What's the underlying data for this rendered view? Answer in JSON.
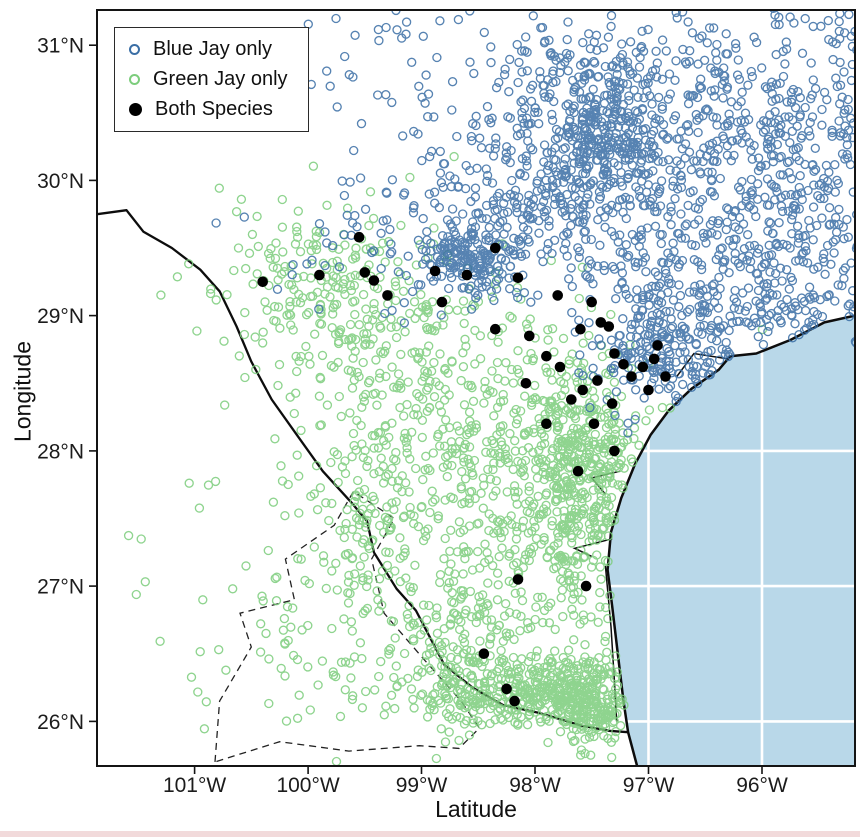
{
  "figure": {
    "description": "Map scatter plot of Blue Jay and Green Jay occurrence records over south Texas and the Gulf coast"
  },
  "legend": {
    "items": [
      {
        "label": "Blue Jay only",
        "marker": "open",
        "color": "#3a6ea5"
      },
      {
        "label": "Green Jay only",
        "marker": "open",
        "color": "#7ccd7c"
      },
      {
        "label": "Both Species",
        "marker": "filled",
        "color": "#000000"
      }
    ]
  },
  "axes": {
    "x": {
      "title": "Latitude",
      "ticks": [
        {
          "value": -101,
          "label": "101°W"
        },
        {
          "value": -100,
          "label": "100°W"
        },
        {
          "value": -99,
          "label": "99°W"
        },
        {
          "value": -98,
          "label": "98°W"
        },
        {
          "value": -97,
          "label": "97°W"
        },
        {
          "value": -96,
          "label": "96°W"
        }
      ]
    },
    "y": {
      "title": "Longitude",
      "ticks": [
        {
          "value": 31,
          "label": "31°N"
        },
        {
          "value": 30,
          "label": "30°N"
        },
        {
          "value": 29,
          "label": "29°N"
        },
        {
          "value": 28,
          "label": "28°N"
        },
        {
          "value": 27,
          "label": "27°N"
        },
        {
          "value": 26,
          "label": "26°N"
        }
      ]
    }
  },
  "chart_data": {
    "type": "scatter",
    "xlim": [
      -101.86,
      -95.18
    ],
    "ylim": [
      25.67,
      31.26
    ],
    "grid": "graticule over ocean only",
    "legend_position": "top-left inside plot",
    "series": [
      {
        "name": "Blue Jay only",
        "marker": "open-circle",
        "color": "#3a6ea5",
        "radius": 4,
        "clusters": [
          {
            "lon": -97.45,
            "lat": 30.45,
            "sx": 0.28,
            "sy": 0.27,
            "n": 260
          },
          {
            "lon": -97.6,
            "lat": 30.2,
            "sx": 0.65,
            "sy": 0.5,
            "n": 200
          },
          {
            "lon": -98.58,
            "lat": 29.42,
            "sx": 0.2,
            "sy": 0.13,
            "n": 150
          },
          {
            "lon": -98.35,
            "lat": 29.75,
            "sx": 0.5,
            "sy": 0.3,
            "n": 90
          },
          {
            "lon": -95.6,
            "lat": 30.0,
            "sx": 0.7,
            "sy": 0.75,
            "n": 450
          },
          {
            "lon": -95.5,
            "lat": 29.0,
            "sx": 0.45,
            "sy": 0.3,
            "n": 130
          },
          {
            "lon": -96.7,
            "lat": 28.85,
            "sx": 0.35,
            "sy": 0.3,
            "n": 170
          },
          {
            "lon": -97.0,
            "lat": 28.75,
            "sx": 0.3,
            "sy": 0.25,
            "n": 90
          },
          {
            "lon": -96.4,
            "lat": 30.6,
            "sx": 0.7,
            "sy": 0.45,
            "n": 160
          },
          {
            "lon": -98.6,
            "lat": 30.8,
            "sx": 0.9,
            "sy": 0.35,
            "n": 60
          },
          {
            "lon": -97.9,
            "lat": 29.9,
            "sx": 0.55,
            "sy": 0.4,
            "n": 130
          },
          {
            "lon": -99.3,
            "lat": 29.5,
            "sx": 0.55,
            "sy": 0.3,
            "n": 45
          },
          {
            "lon": -96.6,
            "lat": 29.6,
            "sx": 0.5,
            "sy": 0.5,
            "n": 200
          },
          {
            "uniform": true,
            "lon0": -99.8,
            "lon1": -95.2,
            "lat0": 29.4,
            "lat1": 31.26,
            "n": 110
          }
        ]
      },
      {
        "name": "Green Jay only",
        "marker": "open-circle",
        "color": "#7ccd7c",
        "radius": 4,
        "clusters": [
          {
            "lon": -98.15,
            "lat": 26.18,
            "sx": 0.55,
            "sy": 0.12,
            "n": 300
          },
          {
            "lon": -97.55,
            "lat": 26.12,
            "sx": 0.2,
            "sy": 0.18,
            "n": 170
          },
          {
            "lon": -97.75,
            "lat": 26.32,
            "sx": 0.28,
            "sy": 0.15,
            "n": 110
          },
          {
            "lon": -97.5,
            "lat": 27.55,
            "sx": 0.28,
            "sy": 0.45,
            "n": 200
          },
          {
            "lon": -97.8,
            "lat": 27.7,
            "sx": 0.42,
            "sy": 0.45,
            "n": 240
          },
          {
            "lon": -98.45,
            "lat": 27.8,
            "sx": 0.75,
            "sy": 0.65,
            "n": 260
          },
          {
            "lon": -99.45,
            "lat": 27.5,
            "sx": 0.22,
            "sy": 0.5,
            "n": 110
          },
          {
            "lon": -99.6,
            "lat": 29.0,
            "sx": 0.55,
            "sy": 0.4,
            "n": 180
          },
          {
            "lon": -100.1,
            "lat": 29.3,
            "sx": 0.35,
            "sy": 0.25,
            "n": 70
          },
          {
            "lon": -98.8,
            "lat": 28.5,
            "sx": 0.6,
            "sy": 0.4,
            "n": 160
          },
          {
            "lon": -100.2,
            "lat": 26.7,
            "sx": 0.7,
            "sy": 0.55,
            "n": 70
          },
          {
            "lon": -98.6,
            "lat": 26.6,
            "sx": 0.3,
            "sy": 0.3,
            "n": 120
          },
          {
            "lon": -97.55,
            "lat": 28.1,
            "sx": 0.25,
            "sy": 0.3,
            "n": 120
          },
          {
            "uniform": true,
            "lon0": -100.3,
            "lon1": -97.25,
            "lat0": 26.0,
            "lat1": 28.8,
            "n": 140
          }
        ]
      },
      {
        "name": "Both Species",
        "marker": "filled-circle",
        "color": "#000000",
        "radius": 5.3,
        "points": [
          [
            -100.4,
            29.25
          ],
          [
            -99.9,
            29.3
          ],
          [
            -99.55,
            29.58
          ],
          [
            -99.5,
            29.32
          ],
          [
            -99.42,
            29.26
          ],
          [
            -99.3,
            29.15
          ],
          [
            -98.88,
            29.33
          ],
          [
            -98.82,
            29.1
          ],
          [
            -98.6,
            29.3
          ],
          [
            -98.35,
            29.5
          ],
          [
            -98.15,
            29.28
          ],
          [
            -97.8,
            29.15
          ],
          [
            -97.5,
            29.1
          ],
          [
            -97.42,
            28.95
          ],
          [
            -98.35,
            28.9
          ],
          [
            -98.05,
            28.85
          ],
          [
            -97.9,
            28.7
          ],
          [
            -97.78,
            28.62
          ],
          [
            -97.6,
            28.9
          ],
          [
            -97.35,
            28.92
          ],
          [
            -97.3,
            28.72
          ],
          [
            -97.22,
            28.64
          ],
          [
            -97.15,
            28.55
          ],
          [
            -97.05,
            28.62
          ],
          [
            -96.95,
            28.68
          ],
          [
            -97.0,
            28.45
          ],
          [
            -97.45,
            28.52
          ],
          [
            -97.58,
            28.45
          ],
          [
            -97.68,
            28.38
          ],
          [
            -97.48,
            28.2
          ],
          [
            -97.9,
            28.2
          ],
          [
            -97.3,
            28.0
          ],
          [
            -97.62,
            27.85
          ],
          [
            -98.08,
            28.5
          ],
          [
            -96.92,
            28.78
          ],
          [
            -98.15,
            27.05
          ],
          [
            -97.55,
            27.0
          ],
          [
            -98.45,
            26.5
          ],
          [
            -98.25,
            26.24
          ],
          [
            -98.18,
            26.15
          ],
          [
            -97.32,
            28.35
          ],
          [
            -96.85,
            28.55
          ]
        ]
      }
    ]
  },
  "map": {
    "ocean_color": "#b9d8e9",
    "line_color": "#0d0d0d",
    "graticule": {
      "lons": [
        -97,
        -96
      ],
      "lats": [
        26,
        27,
        28
      ]
    },
    "coast": [
      [
        -95.18,
        29.0
      ],
      [
        -95.45,
        28.95
      ],
      [
        -95.75,
        28.82
      ],
      [
        -96.05,
        28.72
      ],
      [
        -96.28,
        28.7
      ],
      [
        -96.38,
        28.6
      ],
      [
        -96.62,
        28.46
      ],
      [
        -96.82,
        28.3
      ],
      [
        -96.98,
        28.12
      ],
      [
        -97.12,
        27.9
      ],
      [
        -97.24,
        27.65
      ],
      [
        -97.33,
        27.4
      ],
      [
        -97.36,
        27.12
      ],
      [
        -97.32,
        26.85
      ],
      [
        -97.27,
        26.5
      ],
      [
        -97.22,
        26.15
      ],
      [
        -97.18,
        25.92
      ],
      [
        -97.1,
        25.67
      ]
    ],
    "river": [
      [
        -101.86,
        29.75
      ],
      [
        -101.6,
        29.78
      ],
      [
        -101.45,
        29.62
      ],
      [
        -101.2,
        29.5
      ],
      [
        -100.95,
        29.34
      ],
      [
        -100.78,
        29.18
      ],
      [
        -100.63,
        28.92
      ],
      [
        -100.5,
        28.66
      ],
      [
        -100.32,
        28.38
      ],
      [
        -100.1,
        28.12
      ],
      [
        -99.87,
        27.85
      ],
      [
        -99.62,
        27.62
      ],
      [
        -99.48,
        27.48
      ],
      [
        -99.42,
        27.25
      ],
      [
        -99.22,
        26.98
      ],
      [
        -99.05,
        26.82
      ],
      [
        -98.8,
        26.42
      ],
      [
        -98.55,
        26.25
      ],
      [
        -98.28,
        26.12
      ],
      [
        -97.95,
        26.06
      ],
      [
        -97.6,
        25.97
      ],
      [
        -97.35,
        25.93
      ],
      [
        -97.18,
        25.92
      ]
    ],
    "dashed_boundary": [
      [
        -100.82,
        25.7
      ],
      [
        -100.78,
        26.15
      ],
      [
        -100.5,
        26.55
      ],
      [
        -100.6,
        26.8
      ],
      [
        -100.12,
        26.9
      ],
      [
        -100.2,
        27.2
      ],
      [
        -99.77,
        27.45
      ],
      [
        -99.6,
        27.7
      ],
      [
        -99.24,
        27.5
      ],
      [
        -99.44,
        27.2
      ],
      [
        -99.33,
        26.8
      ],
      [
        -98.97,
        26.45
      ],
      [
        -98.65,
        26.15
      ],
      [
        -98.49,
        25.95
      ],
      [
        -98.67,
        25.8
      ],
      [
        -99.02,
        25.82
      ],
      [
        -99.64,
        25.78
      ],
      [
        -100.25,
        25.85
      ],
      [
        -100.82,
        25.7
      ]
    ],
    "lagoon": [
      [
        -97.38,
        27.15
      ],
      [
        -97.33,
        26.7
      ],
      [
        -97.3,
        26.3
      ],
      [
        -97.28,
        26.0
      ]
    ],
    "bays": [
      [
        [
          -97.25,
          27.85
        ],
        [
          -97.5,
          27.8
        ],
        [
          -97.38,
          27.68
        ]
      ],
      [
        [
          -97.32,
          27.35
        ],
        [
          -97.65,
          27.28
        ],
        [
          -97.5,
          27.22
        ]
      ],
      [
        [
          -96.3,
          28.68
        ],
        [
          -96.6,
          28.72
        ],
        [
          -96.75,
          28.55
        ]
      ]
    ]
  }
}
